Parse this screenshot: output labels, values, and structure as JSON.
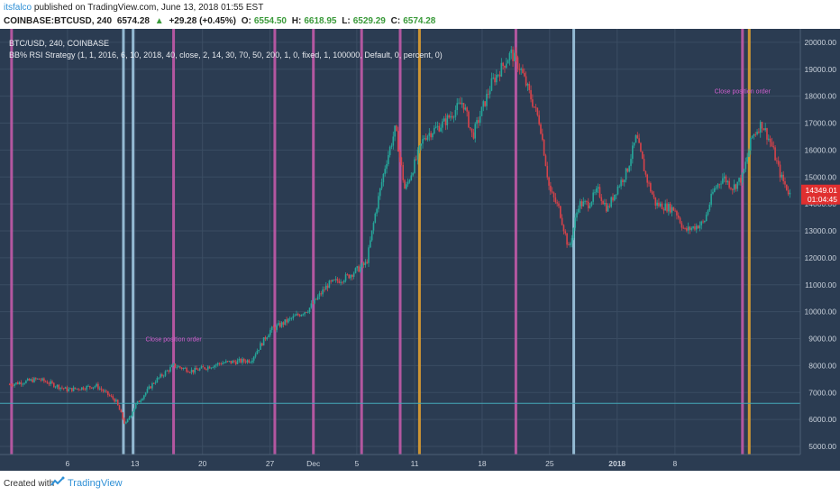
{
  "header": {
    "user": "itsfalco",
    "published": "published on TradingView.com, June 13, 2018 01:55 EST",
    "symbol": "COINBASE:BTCUSD, 240",
    "last": "6574.28",
    "change_arrow": "▲",
    "change": "+29.28 (+0.45%)",
    "o_label": "O:",
    "o_value": "6554.50",
    "h_label": "H:",
    "h_value": "6618.95",
    "l_label": "L:",
    "l_value": "6529.29",
    "c_label": "C:",
    "c_value": "6574.28"
  },
  "legend": {
    "line1": "BTC/USD, 240, COINBASE",
    "line2": "BB% RSI Strategy (1, 1, 2016, 6, 10, 2018, 40, close, 2, 14, 30, 70, 50, 200, 1, 0, fixed, 1, 100000, Default, 0, percent, 0)"
  },
  "footer": {
    "created": "Created with",
    "brand": "TradingView"
  },
  "chart_data": {
    "type": "candlestick",
    "title": "",
    "xlabel": "",
    "ylabel": "",
    "x_ticks": [
      "6",
      "13",
      "20",
      "27",
      "Dec",
      "5",
      "11",
      "18",
      "25",
      "2018",
      "8"
    ],
    "y_ticks": [
      5000,
      6000,
      7000,
      8000,
      9000,
      10000,
      11000,
      12000,
      13000,
      14000,
      15000,
      16000,
      17000,
      18000,
      19000,
      20000
    ],
    "y_tick_labels": [
      "5000.00",
      "6000.00",
      "7000.00",
      "8000.00",
      "9000.00",
      "10000.00",
      "11000.00",
      "12000.00",
      "13000.00",
      "14000.00",
      "15000.00",
      "16000.00",
      "17000.00",
      "18000.00",
      "19000.00",
      "20000.00"
    ],
    "ylim": [
      4700,
      20500
    ],
    "grid": true,
    "price_label": "14349.01",
    "time_label": "01:04:45",
    "reference_line": 6600,
    "price_path": [
      {
        "d": 0,
        "p": 7300
      },
      {
        "d": 3,
        "p": 7500
      },
      {
        "d": 6,
        "p": 7100
      },
      {
        "d": 9,
        "p": 7250
      },
      {
        "d": 11,
        "p": 6700
      },
      {
        "d": 12,
        "p": 5800
      },
      {
        "d": 13,
        "p": 6500
      },
      {
        "d": 15,
        "p": 7400
      },
      {
        "d": 17,
        "p": 8000
      },
      {
        "d": 19,
        "p": 7800
      },
      {
        "d": 22,
        "p": 8100
      },
      {
        "d": 25,
        "p": 8200
      },
      {
        "d": 27,
        "p": 9300
      },
      {
        "d": 29,
        "p": 9700
      },
      {
        "d": 31,
        "p": 10100
      },
      {
        "d": 33,
        "p": 11000
      },
      {
        "d": 35,
        "p": 11300
      },
      {
        "d": 37,
        "p": 11800
      },
      {
        "d": 38,
        "p": 13800
      },
      {
        "d": 39,
        "p": 15500
      },
      {
        "d": 40,
        "p": 16800
      },
      {
        "d": 41,
        "p": 14500
      },
      {
        "d": 43,
        "p": 16500
      },
      {
        "d": 45,
        "p": 17000
      },
      {
        "d": 47,
        "p": 17800
      },
      {
        "d": 48,
        "p": 16500
      },
      {
        "d": 50,
        "p": 18500
      },
      {
        "d": 52,
        "p": 19600
      },
      {
        "d": 53,
        "p": 19000
      },
      {
        "d": 55,
        "p": 17000
      },
      {
        "d": 56,
        "p": 14500
      },
      {
        "d": 57,
        "p": 13800
      },
      {
        "d": 58,
        "p": 12300
      },
      {
        "d": 59,
        "p": 14000
      },
      {
        "d": 60,
        "p": 14000
      },
      {
        "d": 61,
        "p": 14500
      },
      {
        "d": 62,
        "p": 13800
      },
      {
        "d": 63,
        "p": 14600
      },
      {
        "d": 64,
        "p": 15200
      },
      {
        "d": 65,
        "p": 16500
      },
      {
        "d": 66,
        "p": 15000
      },
      {
        "d": 67,
        "p": 14000
      },
      {
        "d": 69,
        "p": 13800
      },
      {
        "d": 70,
        "p": 13000
      },
      {
        "d": 72,
        "p": 13300
      },
      {
        "d": 73,
        "p": 14500
      },
      {
        "d": 74,
        "p": 15000
      },
      {
        "d": 75,
        "p": 14600
      },
      {
        "d": 76,
        "p": 15000
      },
      {
        "d": 77,
        "p": 16500
      },
      {
        "d": 78,
        "p": 17000
      },
      {
        "d": 79,
        "p": 16200
      },
      {
        "d": 80,
        "p": 15000
      },
      {
        "d": 81,
        "p": 14300
      }
    ],
    "vertical_markers": [
      {
        "d": 0.2,
        "color": "#c25aa8"
      },
      {
        "d": 11.8,
        "color": "#9fc6e0"
      },
      {
        "d": 12.8,
        "color": "#9fc6e0"
      },
      {
        "d": 17.0,
        "color": "#c25aa8"
      },
      {
        "d": 27.5,
        "color": "#c25aa8"
      },
      {
        "d": 31.5,
        "color": "#c25aa8"
      },
      {
        "d": 36.5,
        "color": "#c25aa8"
      },
      {
        "d": 40.5,
        "color": "#c25aa8"
      },
      {
        "d": 42.5,
        "color": "#e0a030"
      },
      {
        "d": 52.5,
        "color": "#c25aa8"
      },
      {
        "d": 58.5,
        "color": "#9fc6e0"
      },
      {
        "d": 76.0,
        "color": "#c25aa8"
      },
      {
        "d": 76.7,
        "color": "#e0a030"
      }
    ],
    "annotations": [
      {
        "d": 17.0,
        "p": 8900,
        "text": "Close position order"
      },
      {
        "d": 76.0,
        "p": 18100,
        "text": "Close position order"
      }
    ]
  }
}
